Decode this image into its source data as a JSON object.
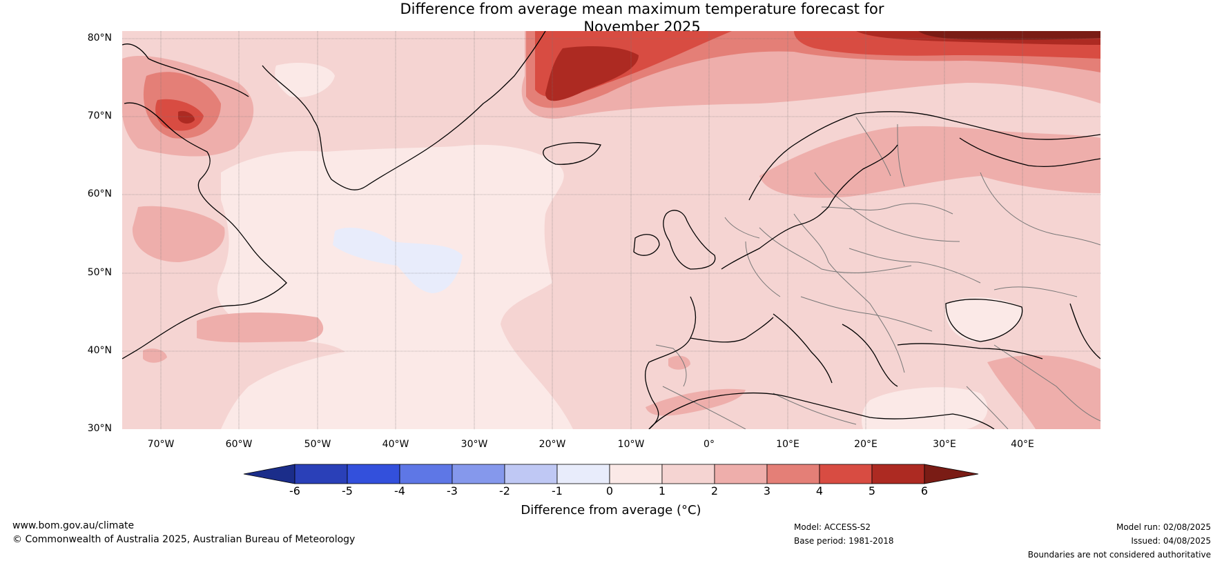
{
  "title": {
    "line1": "Difference from average mean maximum temperature forecast for",
    "line2": "November 2025"
  },
  "map": {
    "latitude_labels": [
      "80°N",
      "70°N",
      "60°N",
      "50°N",
      "40°N",
      "30°N"
    ],
    "longitude_labels": [
      "70°W",
      "60°W",
      "50°W",
      "40°W",
      "30°W",
      "20°W",
      "10°W",
      "0°",
      "10°E",
      "20°E",
      "30°E",
      "40°E"
    ]
  },
  "colorbar": {
    "title": "Difference from average (°C)",
    "ticks": [
      "-6",
      "-5",
      "-4",
      "-3",
      "-2",
      "-1",
      "0",
      "1",
      "2",
      "3",
      "4",
      "5",
      "6"
    ],
    "colors": {
      "below": "#1b2d8a",
      "bins": [
        "#2a40b8",
        "#3350dc",
        "#5e77e6",
        "#8598ec",
        "#bfc8f4",
        "#e8ecfb",
        "#fbe9e7",
        "#f5d4d2",
        "#eeaeab",
        "#e47f77",
        "#d84c42",
        "#ad2a22"
      ],
      "above": "#7a1c15"
    }
  },
  "footer": {
    "website": "www.bom.gov.au/climate",
    "copyright": "© Commonwealth of Australia 2025, Australian Bureau of Meteorology",
    "model": "Model: ACCESS-S2",
    "base_period": "Base period: 1981-2018",
    "model_run": "Model run: 02/08/2025",
    "issued": "Issued: 04/08/2025",
    "disclaimer": "Boundaries are not considered authoritative"
  }
}
